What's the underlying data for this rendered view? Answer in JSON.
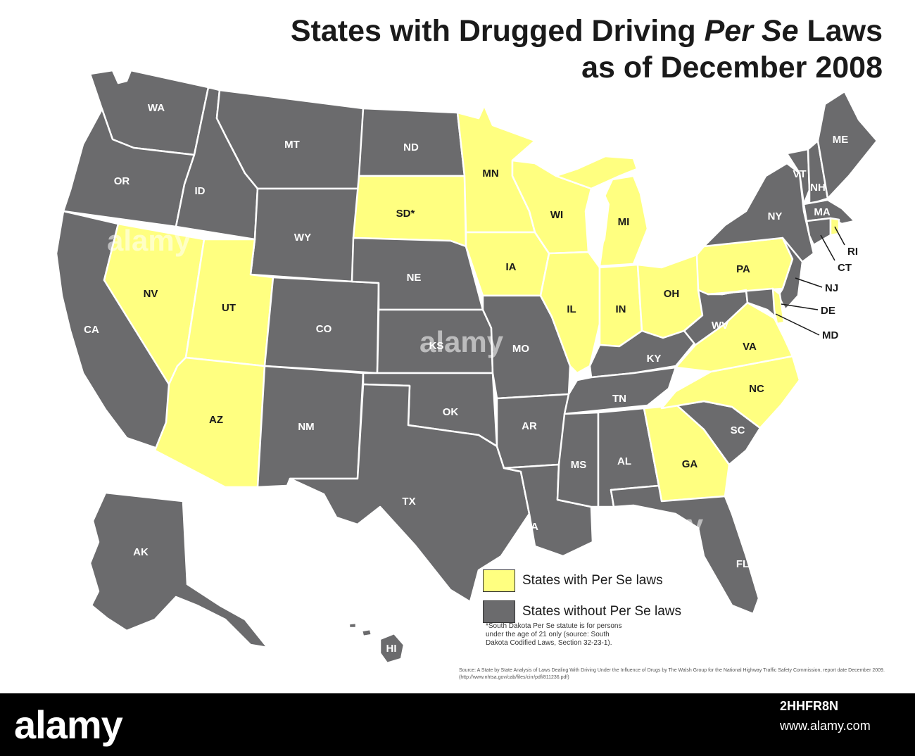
{
  "title": {
    "line1_pre": "States with Drugged Driving ",
    "line1_italic": "Per Se",
    "line1_post": " Laws",
    "line2": "as of December 2008"
  },
  "colors": {
    "with_law": "#ffff80",
    "without_law": "#6b6b6d",
    "border": "#ffffff"
  },
  "legend": {
    "with": "States with Per Se laws",
    "without": "States without Per Se laws"
  },
  "note": {
    "line1": "*South Dakota Per Se statute is for persons",
    "line2": "under the age of 21 only (source: South",
    "line3": "Dakota Codified Laws, Section 32-23-1)."
  },
  "source": "Source: A State by State Analysis of Laws Dealing With Driving Under the Influence of Drugs by The Walsh Group for the National Highway Traffic Safety Commission, report date December 2009. (http://www.nhtsa.gov/cab/files/cirr/pdf/811236.pdf)",
  "states": {
    "WA": "WA",
    "OR": "OR",
    "CA": "CA",
    "ID": "ID",
    "NV": "NV",
    "MT": "MT",
    "WY": "WY",
    "UT": "UT",
    "AZ": "AZ",
    "CO": "CO",
    "NM": "NM",
    "ND": "ND",
    "SD": "SD*",
    "NE": "NE",
    "KS": "KS",
    "OK": "OK",
    "TX": "TX",
    "MN": "MN",
    "IA": "IA",
    "MO": "MO",
    "AR": "AR",
    "LA": "LA",
    "WI": "WI",
    "IL": "IL",
    "MI": "MI",
    "IN": "IN",
    "OH": "OH",
    "KY": "KY",
    "TN": "TN",
    "MS": "MS",
    "AL": "AL",
    "GA": "GA",
    "FL": "FL",
    "SC": "SC",
    "NC": "NC",
    "VA": "VA",
    "WV": "WV",
    "PA": "PA",
    "NY": "NY",
    "VT": "VT",
    "NH": "NH",
    "ME": "ME",
    "MA": "MA",
    "RI": "RI",
    "CT": "CT",
    "NJ": "NJ",
    "DE": "DE",
    "MD": "MD",
    "AK": "AK",
    "HI": "HI"
  },
  "with_law": [
    "NV",
    "UT",
    "AZ",
    "SD",
    "MN",
    "IA",
    "WI",
    "IL",
    "MI",
    "IN",
    "OH",
    "PA",
    "VA",
    "NC",
    "GA",
    "RI",
    "DE"
  ],
  "stock": {
    "logo": "alamy",
    "image_id": "2HHFR8N",
    "url": "www.alamy.com"
  },
  "watermark": "alamy"
}
